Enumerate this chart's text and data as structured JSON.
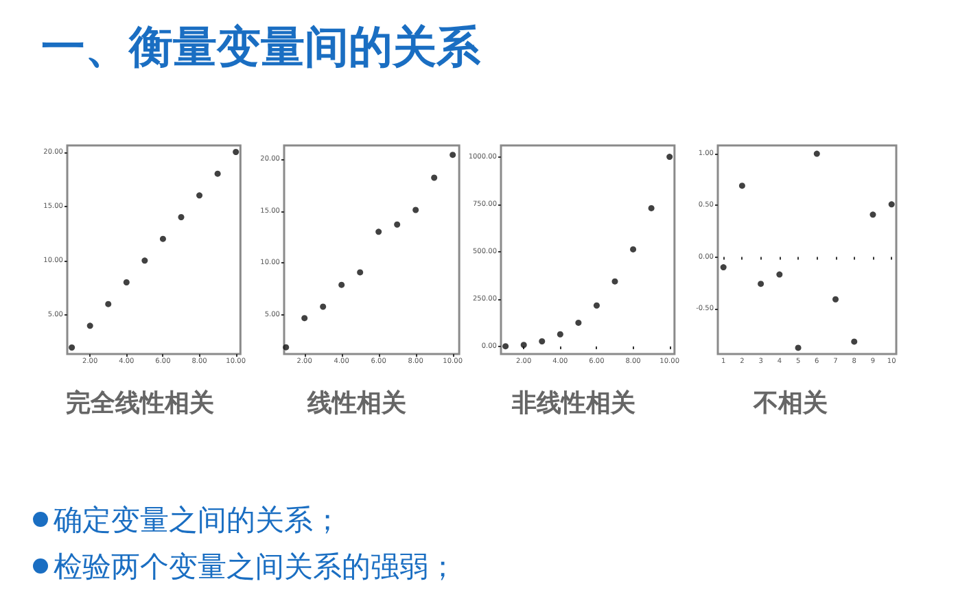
{
  "chart_data": [
    {
      "type": "other",
      "title": "一、衡量变量间的关系"
    },
    {
      "type": "scatter",
      "title": "完全线性相关",
      "x": [
        1,
        2,
        3,
        4,
        5,
        6,
        7,
        8,
        9,
        10
      ],
      "values": [
        2,
        4,
        6,
        8,
        10,
        12,
        14,
        16,
        18,
        20
      ],
      "color": "#111111",
      "marker": "circle",
      "xlim": [
        0.75,
        10.25
      ],
      "ylim": [
        1.4,
        20.6
      ],
      "xticks": [
        {
          "value": 2,
          "label": "2.00"
        },
        {
          "value": 4,
          "label": "4.00"
        },
        {
          "value": 6,
          "label": "6.00"
        },
        {
          "value": 8,
          "label": "8.00"
        },
        {
          "value": 10,
          "label": "10.00"
        }
      ],
      "yticks": [
        {
          "value": 5,
          "label": "5.00"
        },
        {
          "value": 10,
          "label": "10.00"
        },
        {
          "value": 15,
          "label": "15.00"
        },
        {
          "value": 20,
          "label": "20.00"
        }
      ]
    },
    {
      "type": "scatter",
      "title": "线性相关",
      "x": [
        1,
        2,
        3,
        4,
        5,
        6,
        7,
        8,
        9,
        10
      ],
      "values": [
        1.9,
        4.7,
        5.8,
        7.9,
        9.1,
        13.0,
        13.7,
        15.1,
        18.2,
        20.4
      ],
      "color": "#111111",
      "marker": "circle",
      "xlim": [
        0.9,
        10.35
      ],
      "ylim": [
        1.25,
        21.3
      ],
      "xticks": [
        {
          "value": 2,
          "label": "2.00"
        },
        {
          "value": 4,
          "label": "4.00"
        },
        {
          "value": 6,
          "label": "6.00"
        },
        {
          "value": 8,
          "label": "8.00"
        },
        {
          "value": 10,
          "label": "10.00"
        }
      ],
      "yticks": [
        {
          "value": 5,
          "label": "5.00"
        },
        {
          "value": 10,
          "label": "10.00"
        },
        {
          "value": 15,
          "label": "15.00"
        },
        {
          "value": 20,
          "label": "20.00"
        }
      ]
    },
    {
      "type": "scatter",
      "title": "非线性相关",
      "x": [
        1,
        2,
        3,
        4,
        5,
        6,
        7,
        8,
        9,
        10
      ],
      "values": [
        1,
        8,
        27,
        64,
        125,
        216,
        343,
        512,
        729,
        1000
      ],
      "color": "#111111",
      "marker": "circle",
      "xlim": [
        0.75,
        10.27
      ],
      "ylim": [
        -40,
        1060
      ],
      "xticks": [
        {
          "value": 2,
          "label": "2.00"
        },
        {
          "value": 4,
          "label": "4.00"
        },
        {
          "value": 6,
          "label": "6.00"
        },
        {
          "value": 8,
          "label": "8.00"
        },
        {
          "value": 10,
          "label": "10.00"
        }
      ],
      "yticks": [
        {
          "value": 0,
          "label": "0.00"
        },
        {
          "value": 250,
          "label": "250.00"
        },
        {
          "value": 500,
          "label": "500.00"
        },
        {
          "value": 750,
          "label": "750.00"
        },
        {
          "value": 1000,
          "label": "1000.00"
        }
      ]
    },
    {
      "type": "scatter",
      "title": "不相关",
      "x": [
        1,
        2,
        3,
        4,
        5,
        6,
        7,
        8,
        9,
        10
      ],
      "values": [
        -0.1,
        0.69,
        -0.26,
        -0.17,
        -0.88,
        1.0,
        -0.41,
        -0.82,
        0.41,
        0.51
      ],
      "color": "#111111",
      "marker": "circle",
      "xlim": [
        0.7,
        10.25
      ],
      "ylim": [
        -0.94,
        1.08
      ],
      "xticks": [
        1,
        2,
        3,
        4,
        5,
        6,
        7,
        8,
        9,
        10
      ],
      "yticks": [
        {
          "value": -0.5,
          "label": "-0.50"
        },
        {
          "value": 0,
          "label": "0.00"
        },
        {
          "value": 0.5,
          "label": "0.50"
        },
        {
          "value": 1,
          "label": "1.00"
        }
      ]
    },
    {
      "type": "other",
      "annotations": [
        "确定变量之间的关系；",
        "检验两个变量之间关系的强弱；"
      ]
    }
  ]
}
